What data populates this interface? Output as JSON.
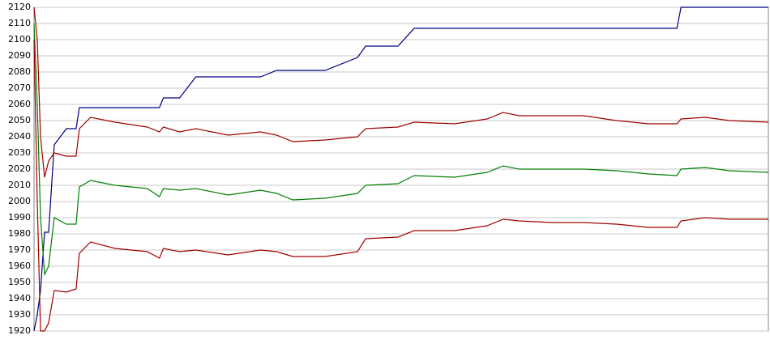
{
  "chart_data": {
    "type": "line",
    "x": [
      0,
      4,
      8,
      13,
      18,
      25,
      40,
      52,
      56,
      70,
      100,
      140,
      155,
      160,
      180,
      200,
      240,
      280,
      300,
      320,
      360,
      400,
      410,
      450,
      470,
      520,
      560,
      580,
      600,
      640,
      680,
      720,
      760,
      795,
      800,
      830,
      860,
      908
    ],
    "xlim": [
      0,
      908
    ],
    "ylim": [
      1920,
      2120
    ],
    "yticks": [
      1920,
      1930,
      1940,
      1950,
      1960,
      1970,
      1980,
      1990,
      2000,
      2010,
      2020,
      2030,
      2040,
      2050,
      2060,
      2070,
      2080,
      2090,
      2100,
      2110,
      2120
    ],
    "grid": true,
    "series": [
      {
        "color": "#000080",
        "values": [
          1920,
          1930,
          1945,
          1981,
          1981,
          2035,
          2045,
          2045,
          2058,
          2058,
          2058,
          2058,
          2058,
          2064,
          2064,
          2077,
          2077,
          2077,
          2081,
          2081,
          2081,
          2089,
          2096,
          2096,
          2107,
          2107,
          2107,
          2107,
          2107,
          2107,
          2107,
          2107,
          2107,
          2107,
          2120,
          2120,
          2120,
          2120
        ]
      },
      {
        "color": "#a00000",
        "values": [
          2120,
          2100,
          2040,
          2015,
          2025,
          2030,
          2028,
          2028,
          2045,
          2052,
          2049,
          2046,
          2043,
          2046,
          2043,
          2045,
          2041,
          2043,
          2041,
          2037,
          2038,
          2040,
          2045,
          2046,
          2049,
          2048,
          2051,
          2055,
          2053,
          2053,
          2053,
          2050,
          2048,
          2048,
          2051,
          2052,
          2050,
          2049
        ]
      },
      {
        "color": "#008000",
        "values": [
          2110,
          2060,
          1990,
          1955,
          1960,
          1990,
          1986,
          1986,
          2009,
          2013,
          2010,
          2008,
          2003,
          2008,
          2007,
          2008,
          2004,
          2007,
          2005,
          2001,
          2002,
          2005,
          2010,
          2011,
          2016,
          2015,
          2018,
          2022,
          2020,
          2020,
          2020,
          2019,
          2017,
          2016,
          2020,
          2021,
          2019,
          2018
        ]
      },
      {
        "color": "#a00000",
        "values": [
          2100,
          2000,
          1920,
          1920,
          1925,
          1945,
          1944,
          1946,
          1968,
          1975,
          1971,
          1969,
          1965,
          1971,
          1969,
          1970,
          1967,
          1970,
          1969,
          1966,
          1966,
          1969,
          1977,
          1978,
          1982,
          1982,
          1985,
          1989,
          1988,
          1987,
          1987,
          1986,
          1984,
          1984,
          1988,
          1990,
          1989,
          1989
        ]
      }
    ]
  }
}
